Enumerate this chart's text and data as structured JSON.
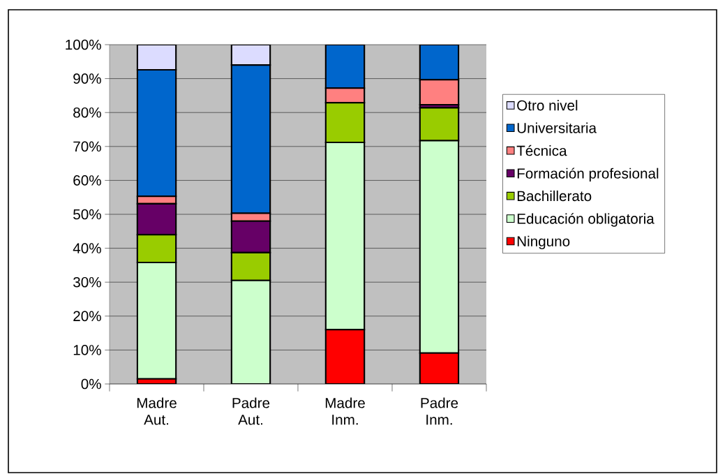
{
  "chart_data": {
    "type": "bar",
    "stacked": true,
    "categories": [
      "Madre Aut.",
      "Padre Aut.",
      "Madre Inm.",
      "Padre Inm."
    ],
    "series": [
      {
        "name": "Ninguno",
        "color": "#ff0000",
        "values": [
          1.5,
          null,
          16.0,
          9.1
        ]
      },
      {
        "name": "Educación obligatoria",
        "color": "#ccffcc",
        "values": [
          34.3,
          30.5,
          55.2,
          62.6
        ]
      },
      {
        "name": "Bachillerato",
        "color": "#99cc00",
        "values": [
          8.2,
          8.2,
          11.7,
          9.7
        ]
      },
      {
        "name": "Formación profesional",
        "color": "#660066",
        "values": [
          9.1,
          9.3,
          0,
          0.9
        ]
      },
      {
        "name": "Técnica",
        "color": "#ff8080",
        "values": [
          2.2,
          2.3,
          4.3,
          7.4
        ]
      },
      {
        "name": "Universitaria",
        "color": "#0066cc",
        "values": [
          37.3,
          43.7,
          12.8,
          10.3
        ]
      },
      {
        "name": "Otro nivel",
        "color": "#dcdcff",
        "values": [
          7.4,
          6.0,
          0,
          0
        ]
      }
    ],
    "ylim": [
      0,
      100
    ],
    "yticks": [
      {
        "value": 0,
        "label": "0%"
      },
      {
        "value": 10,
        "label": "10%"
      },
      {
        "value": 20,
        "label": "20%"
      },
      {
        "value": 30,
        "label": "30%"
      },
      {
        "value": 40,
        "label": "40%"
      },
      {
        "value": 50,
        "label": "50%"
      },
      {
        "value": 60,
        "label": "60%"
      },
      {
        "value": 70,
        "label": "70%"
      },
      {
        "value": 80,
        "label": "80%"
      },
      {
        "value": 90,
        "label": "90%"
      },
      {
        "value": 100,
        "label": "100%"
      }
    ],
    "grid": "y",
    "legend": "right"
  }
}
